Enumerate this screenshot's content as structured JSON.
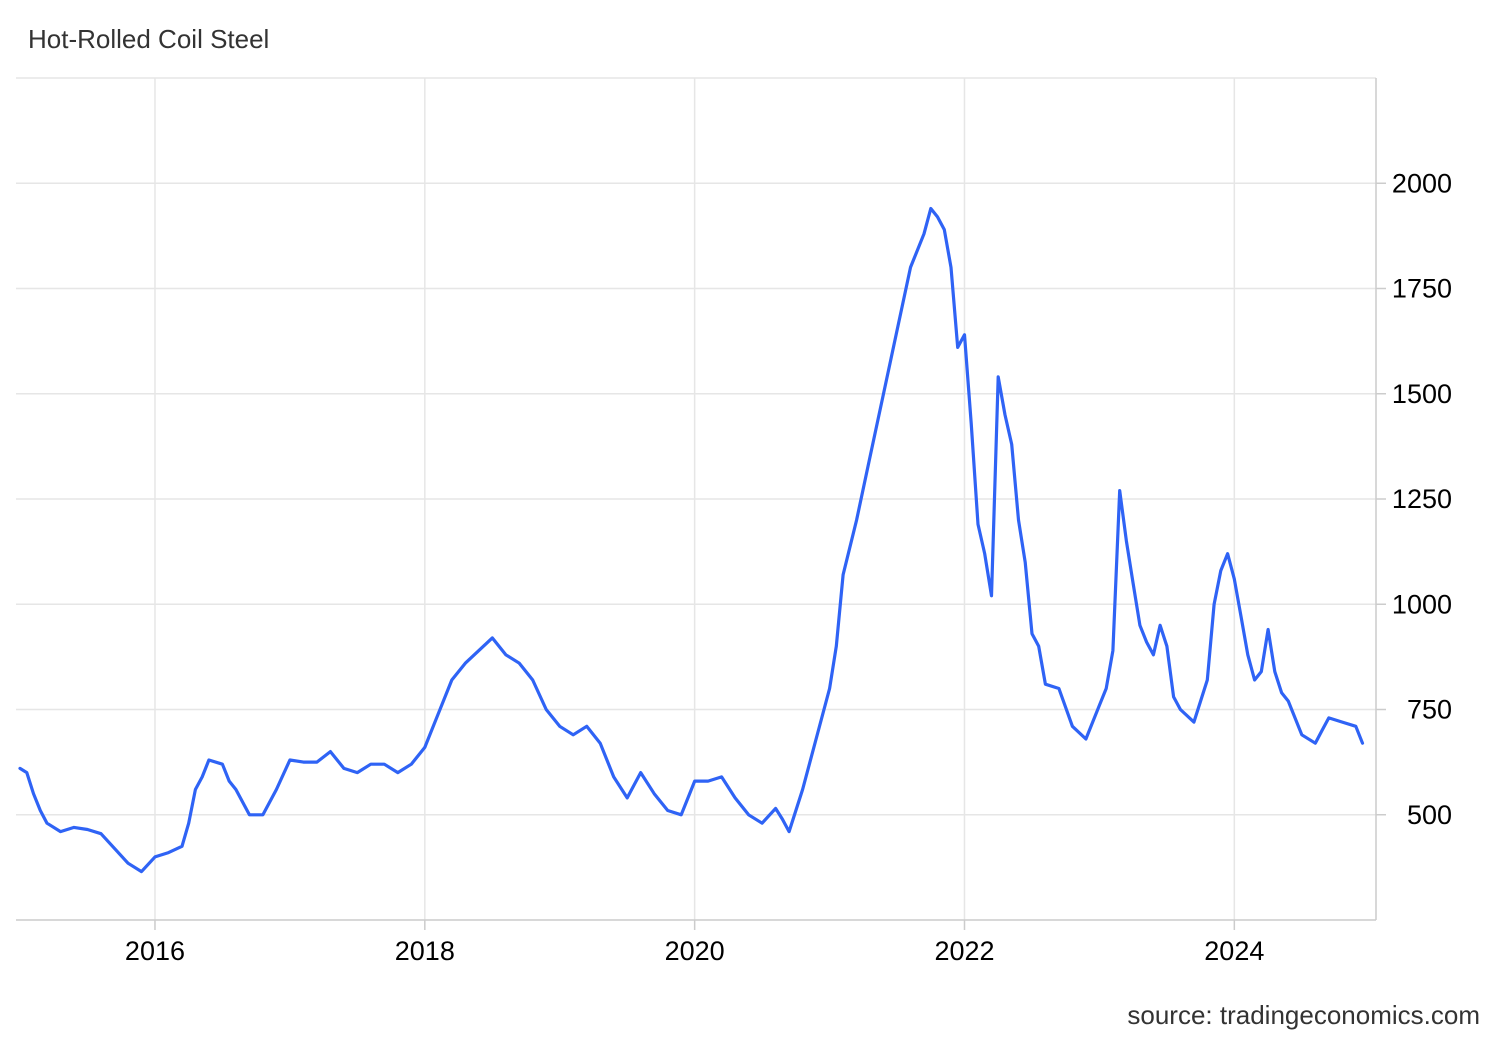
{
  "header": {
    "title": "Hot-Rolled Coil Steel"
  },
  "footer": {
    "source": "source: tradingeconomics.com"
  },
  "colors": {
    "line": "#2f63f5",
    "grid": "#e6e6e6",
    "axis": "#cccccc"
  },
  "chart_data": {
    "type": "line",
    "title": "Hot-Rolled Coil Steel",
    "xlabel": "",
    "ylabel": "",
    "x_ticks": [
      "2016",
      "2018",
      "2020",
      "2022",
      "2024"
    ],
    "y_ticks": [
      500,
      750,
      1000,
      1250,
      1500,
      1750,
      2000
    ],
    "xlim": [
      2014.97,
      2025.05
    ],
    "ylim": [
      250,
      2250
    ],
    "grid": true,
    "y_axis_side": "right",
    "series": [
      {
        "x": [
          2015.0,
          2015.05,
          2015.1,
          2015.15,
          2015.2,
          2015.3,
          2015.4,
          2015.5,
          2015.6,
          2015.7,
          2015.8,
          2015.9,
          2016.0,
          2016.1,
          2016.2,
          2016.25,
          2016.3,
          2016.35,
          2016.4,
          2016.5,
          2016.55,
          2016.6,
          2016.7,
          2016.8,
          2016.9,
          2017.0,
          2017.1,
          2017.2,
          2017.3,
          2017.4,
          2017.5,
          2017.6,
          2017.7,
          2017.8,
          2017.9,
          2018.0,
          2018.1,
          2018.2,
          2018.3,
          2018.4,
          2018.5,
          2018.6,
          2018.7,
          2018.8,
          2018.9,
          2019.0,
          2019.1,
          2019.2,
          2019.3,
          2019.4,
          2019.5,
          2019.6,
          2019.7,
          2019.8,
          2019.9,
          2020.0,
          2020.1,
          2020.2,
          2020.3,
          2020.4,
          2020.5,
          2020.6,
          2020.65,
          2020.7,
          2020.8,
          2020.9,
          2021.0,
          2021.05,
          2021.1,
          2021.2,
          2021.3,
          2021.4,
          2021.5,
          2021.6,
          2021.7,
          2021.75,
          2021.8,
          2021.85,
          2021.9,
          2021.95,
          2022.0,
          2022.05,
          2022.1,
          2022.15,
          2022.2,
          2022.25,
          2022.3,
          2022.35,
          2022.4,
          2022.45,
          2022.5,
          2022.55,
          2022.6,
          2022.7,
          2022.8,
          2022.9,
          2023.0,
          2023.05,
          2023.1,
          2023.15,
          2023.2,
          2023.25,
          2023.3,
          2023.35,
          2023.4,
          2023.45,
          2023.5,
          2023.55,
          2023.6,
          2023.7,
          2023.8,
          2023.85,
          2023.9,
          2023.95,
          2024.0,
          2024.05,
          2024.1,
          2024.15,
          2024.2,
          2024.25,
          2024.3,
          2024.35,
          2024.4,
          2024.5,
          2024.6,
          2024.65,
          2024.7,
          2024.8,
          2024.9,
          2024.95
        ],
        "y": [
          610,
          600,
          550,
          510,
          480,
          460,
          470,
          465,
          455,
          420,
          385,
          365,
          400,
          410,
          425,
          480,
          560,
          590,
          630,
          620,
          580,
          560,
          500,
          500,
          560,
          630,
          625,
          625,
          650,
          610,
          600,
          620,
          620,
          600,
          620,
          660,
          740,
          820,
          860,
          890,
          920,
          880,
          860,
          820,
          750,
          710,
          690,
          710,
          670,
          590,
          540,
          600,
          550,
          510,
          500,
          580,
          580,
          590,
          540,
          500,
          480,
          515,
          490,
          460,
          560,
          680,
          800,
          900,
          1070,
          1200,
          1350,
          1500,
          1650,
          1800,
          1880,
          1940,
          1920,
          1890,
          1800,
          1610,
          1640,
          1430,
          1190,
          1120,
          1020,
          1540,
          1450,
          1380,
          1200,
          1100,
          930,
          900,
          810,
          800,
          710,
          680,
          760,
          800,
          890,
          1270,
          1150,
          1050,
          950,
          910,
          880,
          950,
          900,
          780,
          750,
          720,
          820,
          1000,
          1080,
          1120,
          1060,
          970,
          880,
          820,
          840,
          940,
          840,
          790,
          770,
          690,
          670,
          700,
          730,
          720,
          710,
          670
        ]
      }
    ]
  }
}
